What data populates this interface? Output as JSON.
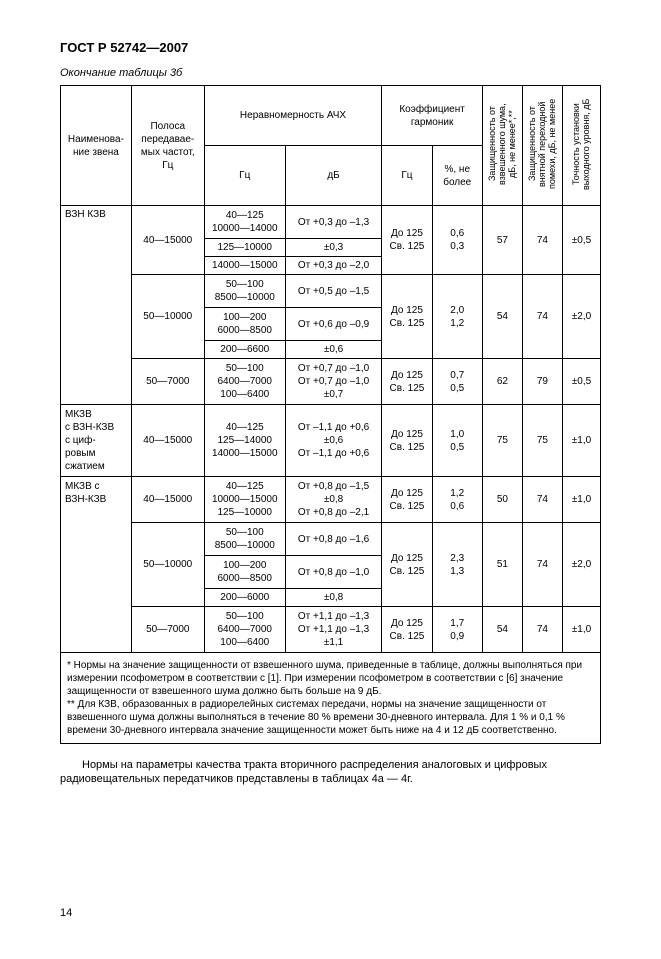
{
  "doc": {
    "header": "ГОСТ Р 52742—2007",
    "caption": "Окончание таблицы 3б",
    "pagenum": "14",
    "paragraph": "Нормы на параметры качества тракта вторичного распределения аналоговых и цифровых радиовещательных передатчиков представлены в таблицах 4а — 4г."
  },
  "headers": {
    "col1": "Наименова-\nние звена",
    "col2": "Полоса\nпередавае-\nмых частот,\nГц",
    "col3": "Неравномерность АЧХ",
    "col4": "Коэффициент\nгармоник",
    "col5": "Защищенность от\nвзвешенного шума,\nдБ, не менее*,**",
    "col6": "Защищенность от\nвнятной переходной\nпомехи, дБ, не менее",
    "col7": "Точность установки\nвыходного уровня, дБ",
    "sub1": "Гц",
    "sub2": "дБ",
    "sub3": "Гц",
    "sub4": "%, не\nболее"
  },
  "rows": {
    "r1name": "ВЗН КЗВ",
    "r1band": "40—15000",
    "r1a_hz": "40—125\n10000—14000",
    "r1a_db": "От +0,3 до –1,3",
    "r1_khz": "До 125\nСв. 125",
    "r1_kpc": "0,6\n0,3",
    "r1_noise": "57",
    "r1_cross": "74",
    "r1_acc": "±0,5",
    "r1b_hz": "125—10000",
    "r1b_db": "±0,3",
    "r1c_hz": "14000—15000",
    "r1c_db": "От +0,3 до –2,0",
    "r2band": "50—10000",
    "r2a_hz": "50—100\n8500—10000",
    "r2a_db": "От +0,5 до –1,5",
    "r2_khz": "До 125\nСв. 125",
    "r2_kpc": "2,0\n1,2",
    "r2_noise": "54",
    "r2_cross": "74",
    "r2_acc": "±2,0",
    "r2b_hz": "100—200\n6000—8500",
    "r2b_db": "От +0,6 до –0,9",
    "r2c_hz": "200—6600",
    "r2c_db": "±0,6",
    "r3band": "50—7000",
    "r3_hz": "50—100\n6400—7000\n100—6400",
    "r3_db": "От +0,7 до –1,0\nОт +0,7 до –1,0\n±0,7",
    "r3_khz": "До 125\nСв. 125",
    "r3_kpc": "0,7\n0,5",
    "r3_noise": "62",
    "r3_cross": "79",
    "r3_acc": "±0,5",
    "r4name": "МКЗВ\nс ВЗН-КЗВ\nс циф-\nровым\nсжатием",
    "r4band": "40—15000",
    "r4_hz": "40—125\n125—14000\n14000—15000",
    "r4_db": "От –1,1 до +0,6\n±0,6\nОт –1,1 до +0,6",
    "r4_khz": "До 125\nСв. 125",
    "r4_kpc": "1,0\n0,5",
    "r4_noise": "75",
    "r4_cross": "75",
    "r4_acc": "±1,0",
    "r5name": "МКЗВ с\nВЗН-КЗВ",
    "r5band": "40—15000",
    "r5_hz": "40—125\n10000—15000\n125—10000",
    "r5_db": "От +0,8 до –1,5\n±0,8\nОт +0,8 до –2,1",
    "r5_khz": "До 125\nСв. 125",
    "r5_kpc": "1,2\n0,6",
    "r5_noise": "50",
    "r5_cross": "74",
    "r5_acc": "±1,0",
    "r6band": "50—10000",
    "r6a_hz": "50—100\n8500—10000",
    "r6a_db": "От +0,8 до –1,6",
    "r6_khz": "До 125\nСв. 125",
    "r6_kpc": "2,3\n1,3",
    "r6_noise": "51",
    "r6_cross": "74",
    "r6_acc": "±2,0",
    "r6b_hz": "100—200\n6000—8500",
    "r6b_db": "От +0,8 до –1,0",
    "r6c_hz": "200—6000",
    "r6c_db": "±0,8",
    "r7band": "50—7000",
    "r7_hz": "50—100\n6400—7000\n100—6400",
    "r7_db": "От +1,1 до –1,3\nОт +1,1 до –1,3\n±1,1",
    "r7_khz": "До 125\nСв. 125",
    "r7_kpc": "1,7\n0,9",
    "r7_noise": "54",
    "r7_cross": "74",
    "r7_acc": "±1,0"
  },
  "note": "* Нормы на значение защищенности от взвешенного шума, приведенные в таблице, должны выполняться при измерении псофометром в соответствии с [1]. При измерении псофометром в соответствии с [6] значение защищенности от взвешенного шума должно быть больше на 9 дБ.\n** Для КЗВ, образованных в радиорелейных системах передачи, нормы на значение защищенности от взвешенного шума должны выполняться в течение 80 % времени 30-дневного интервала. Для 1 % и 0,1 % времени 30-дневного интервала значение защищенности может быть ниже на 4 и 12 дБ соответственно."
}
